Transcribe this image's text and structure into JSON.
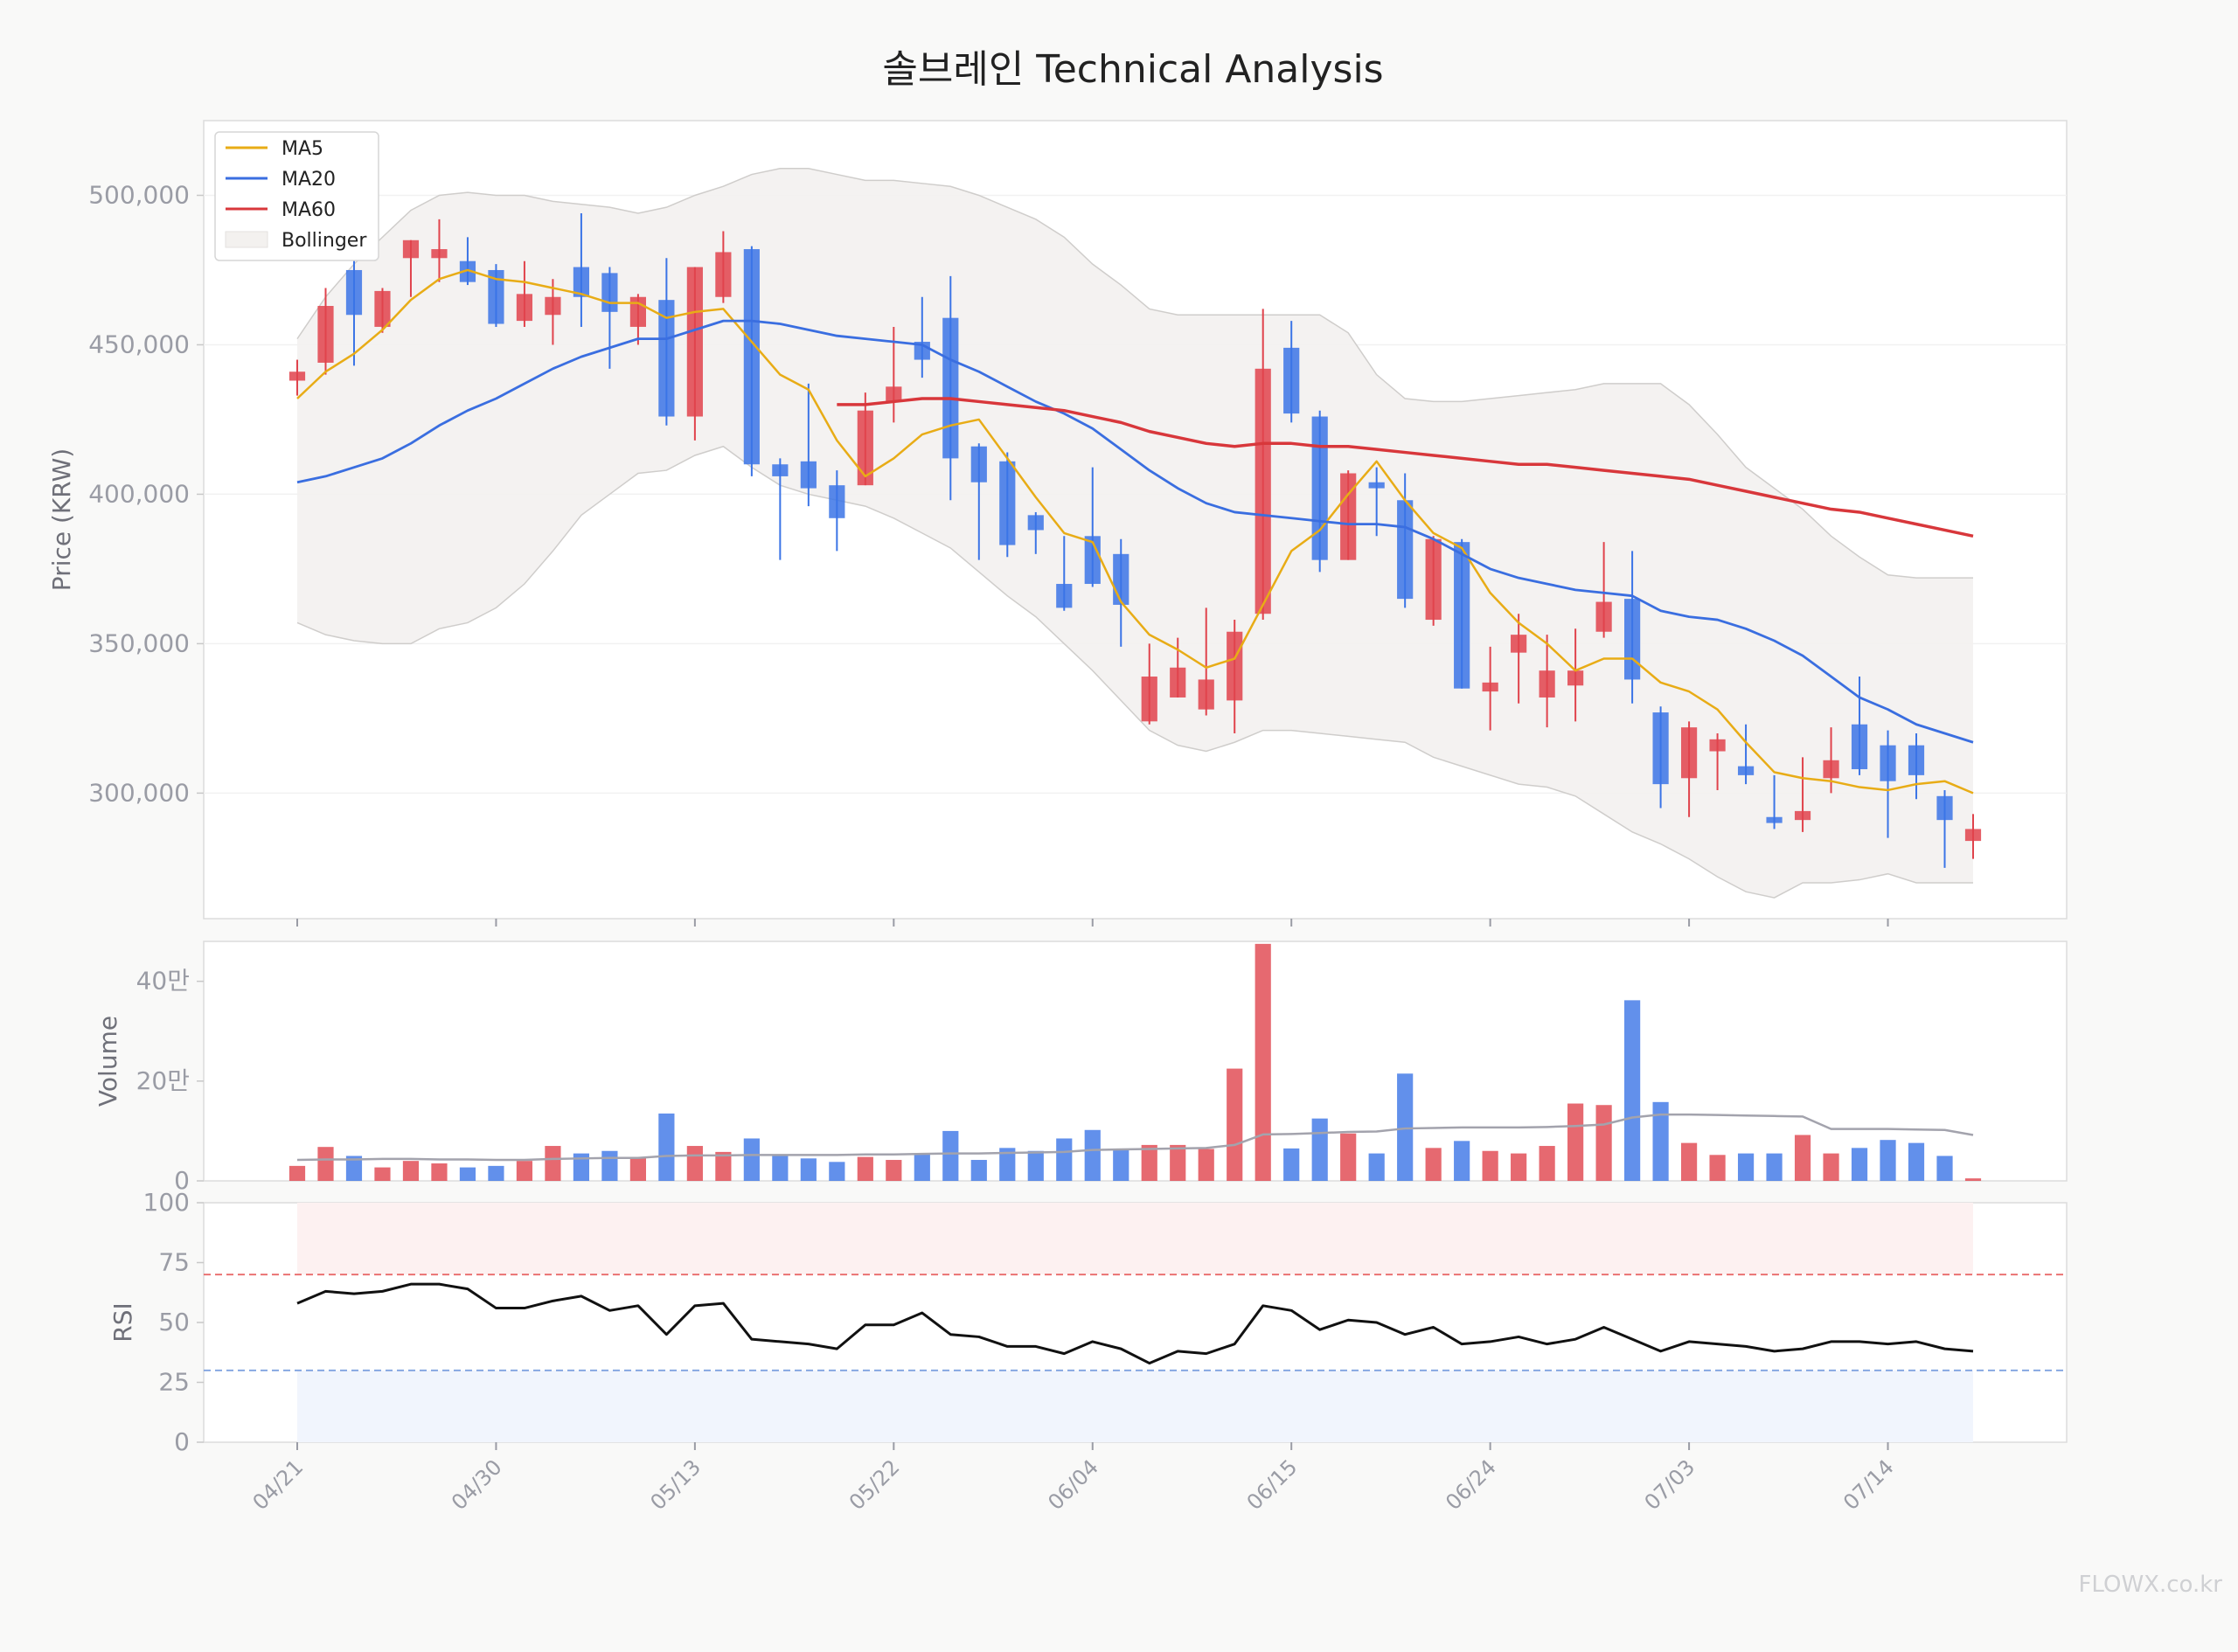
{
  "title": "솔브레인 Technical Analysis",
  "watermark": "FLOWX.co.kr",
  "colors": {
    "up": "#e0434c",
    "down": "#3b74e6",
    "ma5": "#e8ac16",
    "ma20": "#3a6ee0",
    "ma60": "#d8373b",
    "band_fill": "#f3f1ef",
    "band_line": "#cfcdcb",
    "vol_ma": "#a3a3ad",
    "rsi_line": "#111111",
    "overbought": "#e96a6a",
    "oversold": "#7fa2e0",
    "axis_text": "#9a9ca5"
  },
  "chart_data": {
    "type": "candlestick",
    "title": "솔브레인 Technical Analysis",
    "dates": [
      "04/21",
      "04/22",
      "04/23",
      "04/24",
      "04/25",
      "04/28",
      "04/29",
      "04/30",
      "05/02",
      "05/07",
      "05/08",
      "05/09",
      "05/12",
      "05/13",
      "05/14",
      "05/15",
      "05/16",
      "05/19",
      "05/20",
      "05/21",
      "05/22",
      "05/23",
      "05/26",
      "05/27",
      "05/28",
      "05/29",
      "05/30",
      "06/02",
      "06/04",
      "06/05",
      "06/09",
      "06/10",
      "06/11",
      "06/12",
      "06/13",
      "06/16",
      "06/17",
      "06/18",
      "06/19",
      "06/20",
      "06/23",
      "06/24",
      "06/25",
      "06/26",
      "06/27",
      "06/30",
      "07/01",
      "07/02",
      "07/03",
      "07/04",
      "07/07",
      "07/08",
      "07/09",
      "07/10",
      "07/11",
      "07/14",
      "07/15",
      "07/16",
      "07/17",
      "07/18"
    ],
    "x_ticks": [
      "04/21",
      "04/30",
      "05/13",
      "05/22",
      "06/04",
      "06/15",
      "06/24",
      "07/03",
      "07/14"
    ],
    "x_tick_index": [
      0,
      7,
      14,
      21,
      28,
      35,
      42,
      49,
      56
    ],
    "price_panel": {
      "ylabel": "Price (KRW)",
      "ylim": [
        258000,
        525000
      ],
      "yticks": [
        300000,
        350000,
        400000,
        450000,
        500000
      ],
      "ytick_labels": [
        "300,000",
        "350,000",
        "400,000",
        "450,000",
        "500,000"
      ],
      "open": [
        438000,
        444000,
        475000,
        456000,
        479000,
        479000,
        478000,
        475000,
        458000,
        460000,
        476000,
        474000,
        456000,
        465000,
        426000,
        466000,
        482000,
        410000,
        411000,
        403000,
        403000,
        431000,
        451000,
        459000,
        416000,
        411000,
        393000,
        370000,
        386000,
        380000,
        324000,
        332000,
        328000,
        331000,
        360000,
        449000,
        426000,
        378000,
        404000,
        398000,
        358000,
        384000,
        334000,
        347000,
        332000,
        336000,
        354000,
        365000,
        327000,
        305000,
        314000,
        309000,
        292000,
        291000,
        305000,
        323000,
        316000,
        316000,
        299000,
        284000
      ],
      "high": [
        445000,
        469000,
        482000,
        469000,
        485000,
        492000,
        486000,
        477000,
        478000,
        472000,
        494000,
        476000,
        467000,
        479000,
        476000,
        488000,
        483000,
        412000,
        437000,
        408000,
        434000,
        456000,
        466000,
        473000,
        417000,
        414000,
        394000,
        386000,
        409000,
        385000,
        350000,
        352000,
        362000,
        358000,
        462000,
        458000,
        428000,
        408000,
        409000,
        407000,
        386000,
        385000,
        349000,
        360000,
        353000,
        355000,
        384000,
        381000,
        329000,
        324000,
        320000,
        323000,
        306000,
        312000,
        322000,
        339000,
        321000,
        320000,
        301000,
        293000
      ],
      "low": [
        433000,
        440000,
        443000,
        454000,
        466000,
        471000,
        470000,
        456000,
        456000,
        450000,
        456000,
        442000,
        450000,
        423000,
        418000,
        464000,
        406000,
        378000,
        396000,
        381000,
        403000,
        424000,
        439000,
        398000,
        378000,
        379000,
        380000,
        361000,
        369000,
        349000,
        323000,
        332000,
        326000,
        320000,
        358000,
        424000,
        374000,
        378000,
        386000,
        362000,
        356000,
        335000,
        321000,
        330000,
        322000,
        324000,
        352000,
        330000,
        295000,
        292000,
        301000,
        303000,
        288000,
        287000,
        300000,
        306000,
        285000,
        298000,
        275000,
        278000
      ],
      "close": [
        441000,
        463000,
        460000,
        468000,
        485000,
        482000,
        471000,
        457000,
        467000,
        466000,
        466000,
        461000,
        466000,
        426000,
        476000,
        481000,
        410000,
        406000,
        402000,
        392000,
        428000,
        436000,
        445000,
        412000,
        404000,
        383000,
        388000,
        362000,
        370000,
        363000,
        339000,
        342000,
        338000,
        354000,
        442000,
        427000,
        378000,
        407000,
        402000,
        365000,
        385000,
        335000,
        337000,
        353000,
        341000,
        341000,
        364000,
        338000,
        303000,
        322000,
        318000,
        306000,
        290000,
        294000,
        311000,
        308000,
        304000,
        306000,
        291000,
        288000
      ],
      "ma5": [
        432000,
        441000,
        447000,
        455000,
        465000,
        472000,
        475000,
        472000,
        471000,
        469000,
        467000,
        464000,
        464000,
        459000,
        461000,
        462000,
        451000,
        440000,
        435000,
        418000,
        406000,
        412000,
        420000,
        423000,
        425000,
        412000,
        399000,
        387000,
        384000,
        364000,
        353000,
        348000,
        342000,
        345000,
        363000,
        381000,
        388000,
        400000,
        411000,
        398000,
        387000,
        382000,
        367000,
        357000,
        350000,
        341000,
        345000,
        345000,
        337000,
        334000,
        328000,
        317000,
        307000,
        305000,
        304000,
        302000,
        301000,
        303000,
        304000,
        300000
      ],
      "ma20": [
        404000,
        406000,
        409000,
        412000,
        417000,
        423000,
        428000,
        432000,
        437000,
        442000,
        446000,
        449000,
        452000,
        452000,
        455000,
        458000,
        458000,
        457000,
        455000,
        453000,
        452000,
        451000,
        450000,
        445000,
        441000,
        436000,
        431000,
        427000,
        422000,
        415000,
        408000,
        402000,
        397000,
        394000,
        393000,
        392000,
        391000,
        390000,
        390000,
        389000,
        385000,
        380000,
        375000,
        372000,
        370000,
        368000,
        367000,
        366000,
        361000,
        359000,
        358000,
        355000,
        351000,
        346000,
        339000,
        332000,
        328000,
        323000,
        320000,
        317000
      ],
      "ma60_start": 19,
      "ma60": [
        null,
        null,
        null,
        null,
        null,
        null,
        null,
        null,
        null,
        null,
        null,
        null,
        null,
        null,
        null,
        null,
        null,
        null,
        null,
        430000,
        430000,
        431000,
        432000,
        432000,
        431000,
        430000,
        429000,
        428000,
        426000,
        424000,
        421000,
        419000,
        417000,
        416000,
        417000,
        417000,
        416000,
        416000,
        415000,
        414000,
        413000,
        412000,
        411000,
        410000,
        410000,
        409000,
        408000,
        407000,
        406000,
        405000,
        403000,
        401000,
        399000,
        397000,
        395000,
        394000,
        392000,
        390000,
        388000,
        386000
      ],
      "bb_upper": [
        452000,
        466000,
        477000,
        486000,
        495000,
        500000,
        501000,
        500000,
        500000,
        498000,
        497000,
        496000,
        494000,
        496000,
        500000,
        503000,
        507000,
        509000,
        509000,
        507000,
        505000,
        505000,
        504000,
        503000,
        500000,
        496000,
        492000,
        486000,
        477000,
        470000,
        462000,
        460000,
        460000,
        460000,
        460000,
        460000,
        460000,
        454000,
        440000,
        432000,
        431000,
        431000,
        432000,
        433000,
        434000,
        435000,
        437000,
        437000,
        437000,
        430000,
        420000,
        409000,
        402000,
        395000,
        386000,
        379000,
        373000,
        372000,
        372000,
        372000
      ],
      "bb_lower": [
        357000,
        353000,
        351000,
        350000,
        350000,
        355000,
        357000,
        362000,
        370000,
        381000,
        393000,
        400000,
        407000,
        408000,
        413000,
        416000,
        409000,
        403000,
        400000,
        398000,
        396000,
        392000,
        387000,
        382000,
        374000,
        366000,
        359000,
        350000,
        341000,
        331000,
        321000,
        316000,
        314000,
        317000,
        321000,
        321000,
        320000,
        319000,
        318000,
        317000,
        312000,
        309000,
        306000,
        303000,
        302000,
        299000,
        293000,
        287000,
        283000,
        278000,
        272000,
        267000,
        265000,
        270000,
        270000,
        271000,
        273000,
        270000,
        270000,
        270000
      ],
      "legend": [
        "MA5",
        "MA20",
        "MA60",
        "Bollinger"
      ],
      "legend_position": "top-left"
    },
    "volume_panel": {
      "ylabel": "Volume",
      "ylim": [
        0,
        480000
      ],
      "yticks": [
        0,
        200000,
        400000
      ],
      "ytick_labels": [
        "0",
        "20만",
        "40만"
      ],
      "values": [
        30000,
        68000,
        50000,
        27000,
        40000,
        35000,
        27000,
        30000,
        40000,
        70000,
        55000,
        60000,
        48000,
        135000,
        70000,
        58000,
        85000,
        50000,
        45000,
        38000,
        48000,
        42000,
        55000,
        100000,
        42000,
        66000,
        60000,
        85000,
        102000,
        64000,
        72000,
        72000,
        64000,
        225000,
        475000,
        65000,
        125000,
        95000,
        55000,
        215000,
        66000,
        80000,
        60000,
        55000,
        70000,
        155000,
        152000,
        362000,
        158000,
        76000,
        52000,
        55000,
        55000,
        92000,
        55000,
        66000,
        82000,
        76000,
        50000,
        5000
      ],
      "ma": [
        42000,
        43000,
        43000,
        44000,
        44000,
        43000,
        43000,
        42000,
        42000,
        44000,
        45000,
        46000,
        46000,
        50000,
        51000,
        51000,
        52000,
        52000,
        52000,
        52000,
        53000,
        53000,
        54000,
        55000,
        55000,
        56000,
        57000,
        58000,
        62000,
        63000,
        64000,
        65000,
        66000,
        72000,
        93000,
        94000,
        96000,
        98000,
        99000,
        105000,
        106000,
        107000,
        107000,
        107000,
        108000,
        110000,
        113000,
        127000,
        133000,
        133000,
        132000,
        131000,
        130000,
        129000,
        104000,
        104000,
        104000,
        103000,
        102000,
        92000
      ]
    },
    "rsi_panel": {
      "ylabel": "RSI",
      "ylim": [
        0,
        100
      ],
      "yticks": [
        0,
        25,
        50,
        75,
        100
      ],
      "overbought": 70,
      "oversold": 30,
      "values": [
        58,
        63,
        62,
        63,
        66,
        66,
        64,
        56,
        56,
        59,
        61,
        55,
        57,
        45,
        57,
        58,
        43,
        42,
        41,
        39,
        49,
        49,
        54,
        45,
        44,
        40,
        40,
        37,
        42,
        39,
        33,
        38,
        37,
        41,
        57,
        55,
        47,
        51,
        50,
        45,
        48,
        41,
        42,
        44,
        41,
        43,
        48,
        43,
        38,
        42,
        41,
        40,
        38,
        39,
        42,
        42,
        41,
        42,
        39,
        38
      ]
    }
  }
}
